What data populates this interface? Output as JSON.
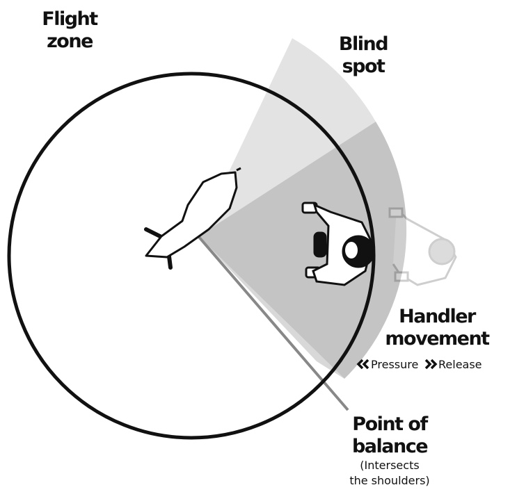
{
  "labels": {
    "flight_zone": [
      "Flight",
      "zone"
    ],
    "blind_spot": [
      "Blind",
      "spot"
    ],
    "handler_movement": [
      "Handler",
      "movement"
    ],
    "pressure": "Pressure",
    "release": "Release",
    "point_of_balance": [
      "Point of",
      "balance"
    ],
    "point_of_balance_note": [
      "(Intersects",
      "the shoulders)"
    ]
  }
}
